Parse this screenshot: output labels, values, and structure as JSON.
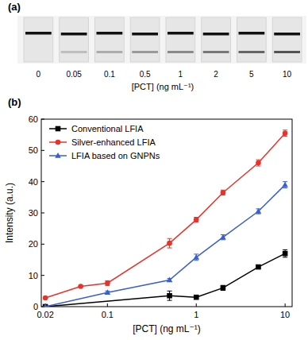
{
  "panel_a": {
    "label": "(a)",
    "concentrations": [
      0,
      0.05,
      0.1,
      0.5,
      1,
      2,
      5,
      10
    ],
    "axis_label": "[PCT] (ng mL⁻¹)"
  },
  "chart_data": {
    "type": "line",
    "label": "(b)",
    "x_label": "[PCT] (ng mL⁻¹)",
    "y_label": "Intensity (a.u.)",
    "log": "x",
    "xlim": [
      0.018,
      12
    ],
    "xticks": [
      0.02,
      0.1,
      1,
      10
    ],
    "ylim": [
      0,
      60
    ],
    "yticks": [
      0,
      10,
      20,
      30,
      40,
      50,
      60
    ],
    "legend": "upper left",
    "grid": false,
    "series": [
      {
        "name": "Conventional LFIA",
        "color": "#000000",
        "marker": "square",
        "line_style": "solid",
        "x": [
          0.02,
          0.5,
          1,
          2,
          5,
          10
        ],
        "values": [
          0,
          3.5,
          3,
          6,
          12.7,
          17
        ],
        "errors": [
          0,
          1.5,
          0.5,
          0.8,
          0.5,
          1.2
        ]
      },
      {
        "name": "Silver-enhanced LFIA",
        "color": "#e8332a",
        "marker": "circle",
        "line_style": "solid",
        "x": [
          0.02,
          0.05,
          0.1,
          0.5,
          1,
          2,
          5,
          10
        ],
        "values": [
          2.8,
          6.5,
          7.5,
          20.3,
          27.8,
          36.5,
          46,
          55.5
        ],
        "errors": [
          0,
          0,
          0.8,
          1.5,
          0.8,
          0.8,
          1,
          1
        ]
      },
      {
        "name": "LFIA based on GNPNs",
        "color": "#3a5fcd",
        "marker": "triangle",
        "line_style": "solid",
        "x": [
          0.02,
          0.1,
          0.5,
          1,
          2,
          5,
          10
        ],
        "values": [
          0,
          4.5,
          8.5,
          15.8,
          22.2,
          30.5,
          39
        ],
        "errors": [
          0,
          0.5,
          0.5,
          1,
          0.8,
          0.8,
          1
        ]
      }
    ]
  }
}
